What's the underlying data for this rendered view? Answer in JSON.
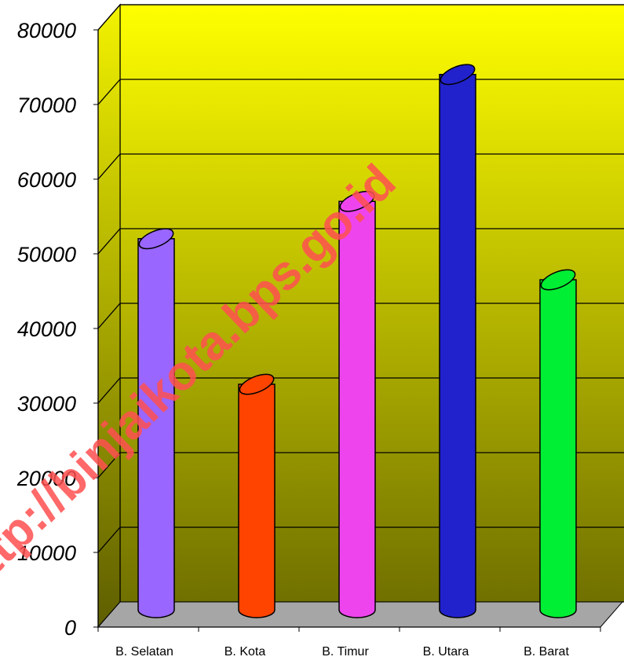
{
  "watermark": "http://binjaikota.bps.go.id",
  "colors": {
    "wall_top": "#ffff00",
    "wall_bottom": "#707000",
    "floor": "#a6a6a6",
    "watermark": "#ff5050"
  },
  "chart_data": {
    "type": "bar",
    "style": "3d-cylinder",
    "title": "",
    "xlabel": "",
    "ylabel": "",
    "categories": [
      "B. Selatan",
      "B. Kota",
      "B. Timur",
      "B. Utara",
      "B. Barat"
    ],
    "values": [
      50000,
      30500,
      55000,
      72000,
      44500
    ],
    "colors": [
      "#9966ff",
      "#ff4400",
      "#ee44ee",
      "#2222cc",
      "#00ee33"
    ],
    "ylim": [
      0,
      80000
    ],
    "yticks": [
      "0",
      "10000",
      "20000",
      "30000",
      "40000",
      "50000",
      "60000",
      "70000",
      "80000"
    ],
    "grid": true,
    "legend": "none"
  }
}
